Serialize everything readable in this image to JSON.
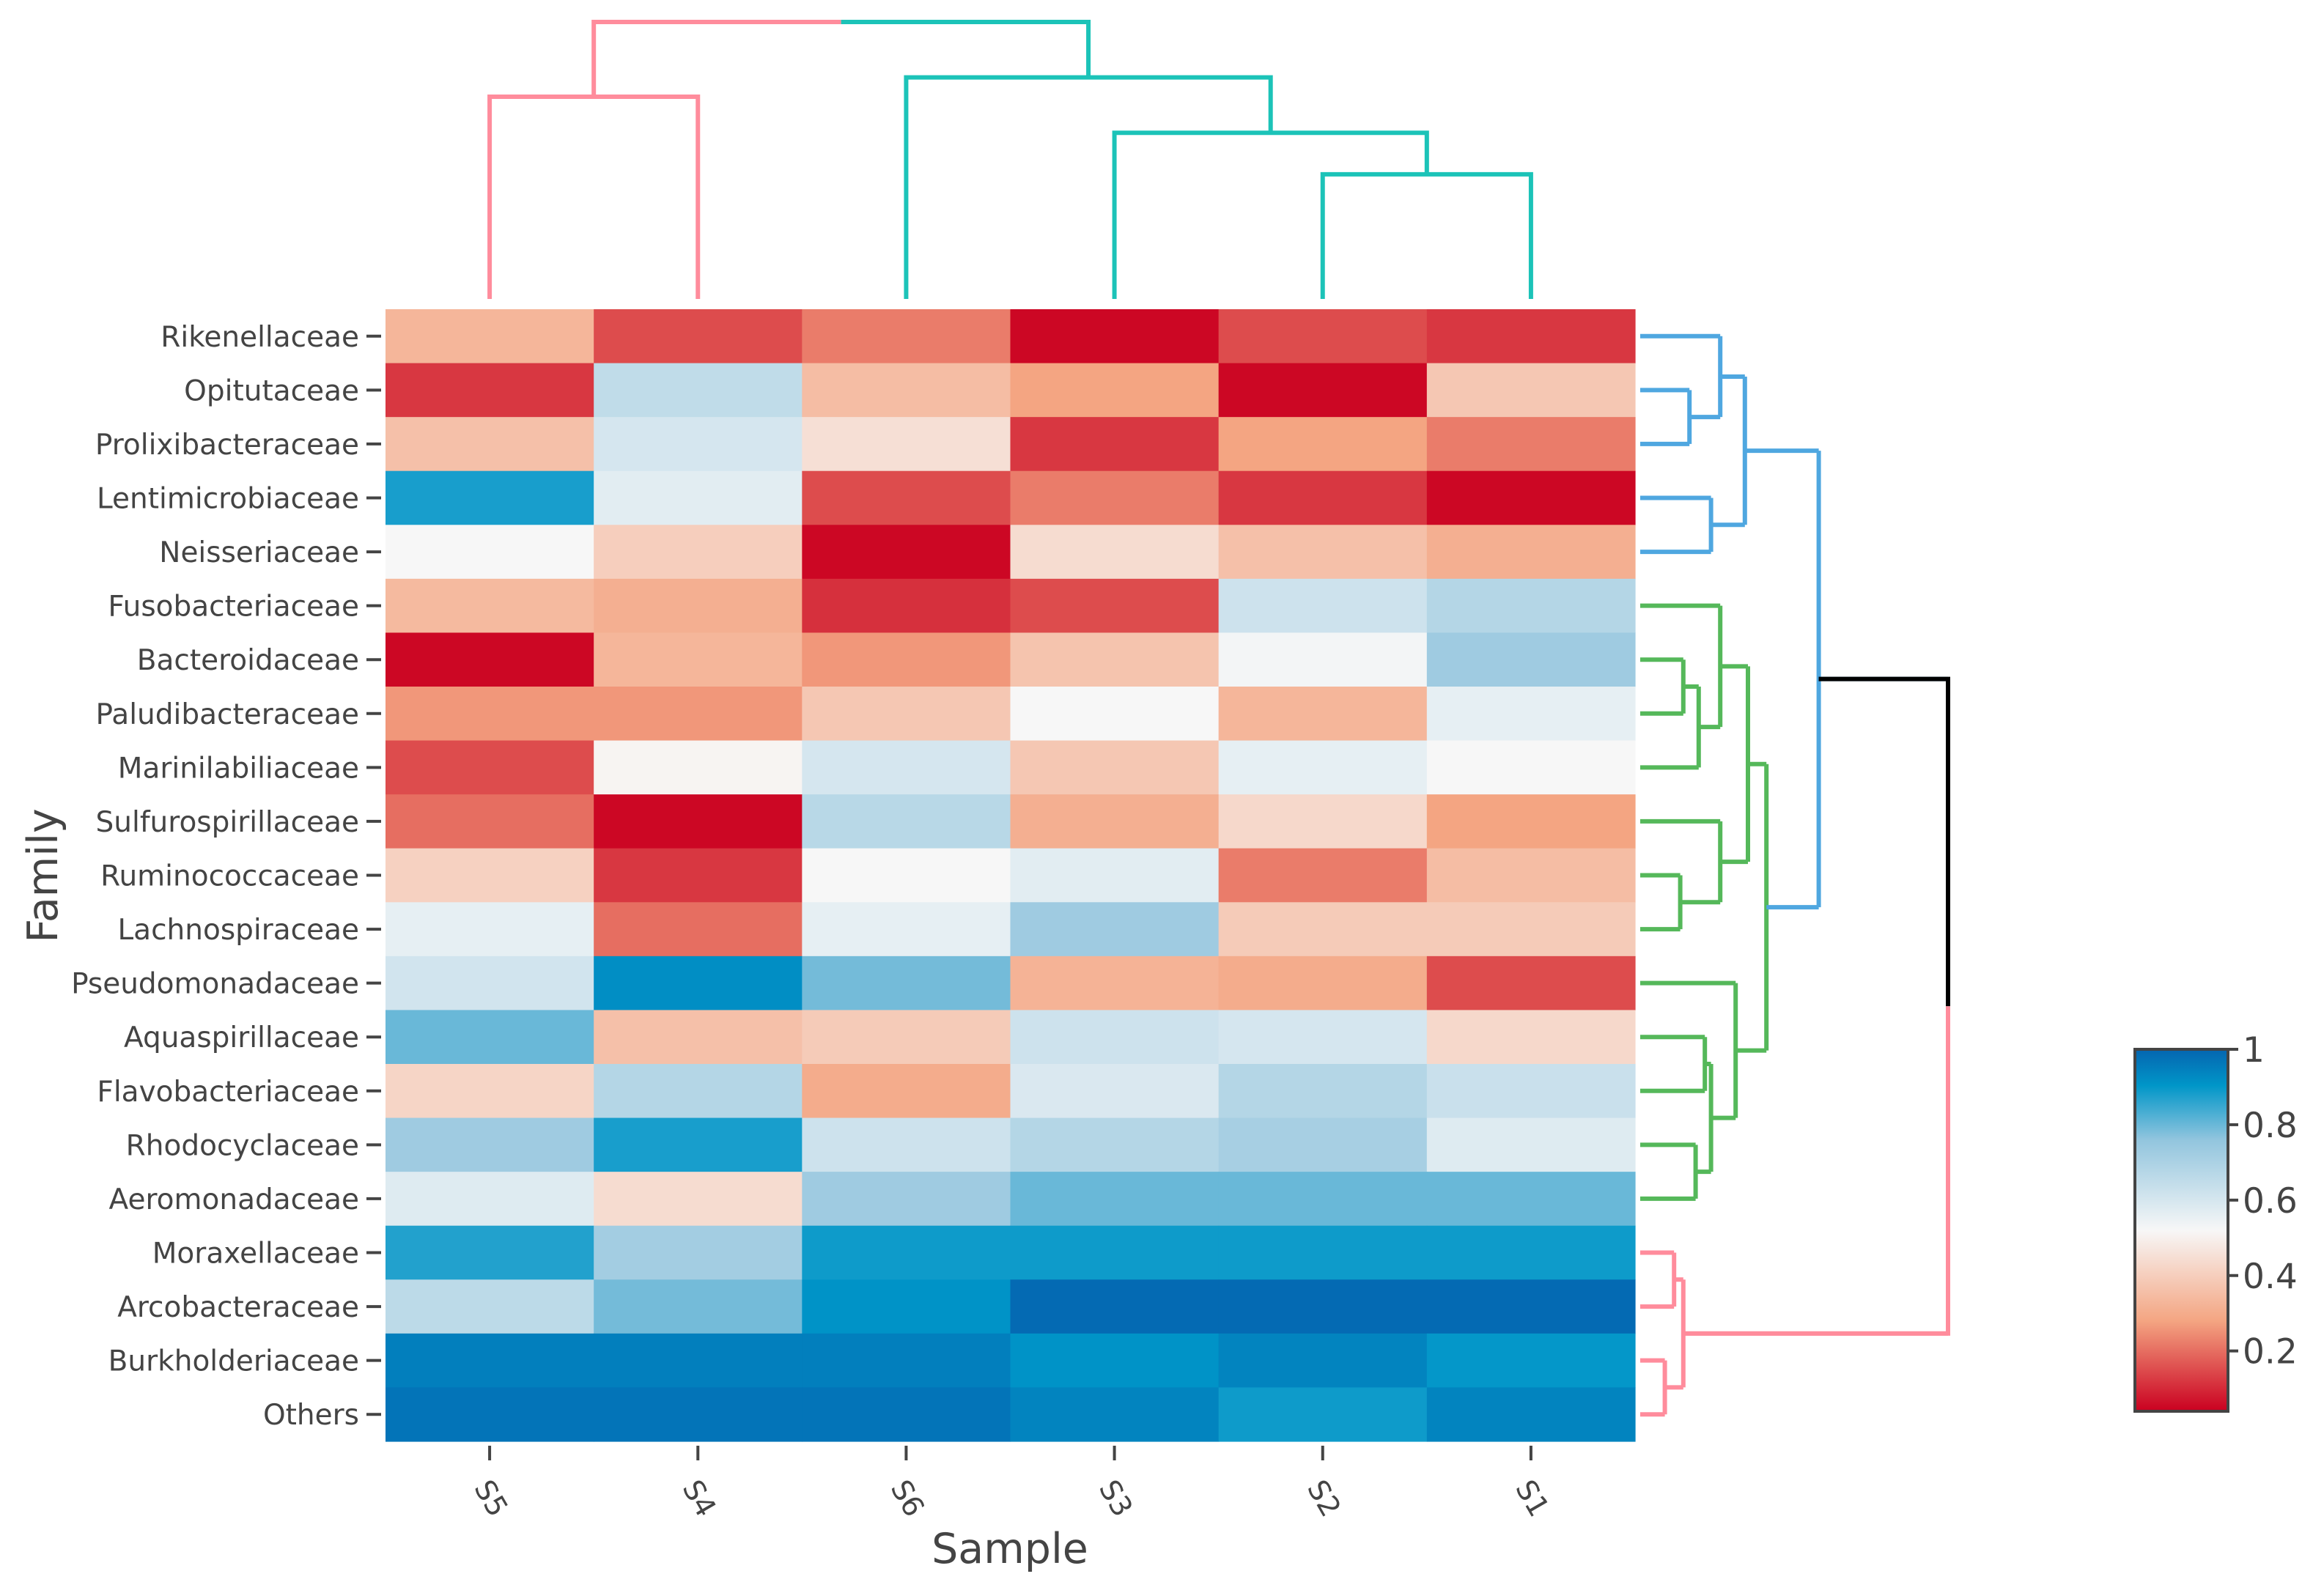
{
  "chart_data": {
    "type": "heatmap",
    "title": "",
    "xlabel": "Sample",
    "ylabel": "Family",
    "x_categories": [
      "S5",
      "S4",
      "S6",
      "S3",
      "S2",
      "S1"
    ],
    "y_categories": [
      "Rikenellaceae",
      "Opitutaceae",
      "Prolixibacteraceae",
      "Lentimicrobiaceae",
      "Neisseriaceae",
      "Fusobacteriaceae",
      "Bacteroidaceae",
      "Paludibacteraceae",
      "Marinilabiliaceae",
      "Sulfurospirillaceae",
      "Ruminococcaceae",
      "Lachnospiraceae",
      "Pseudomonadaceae",
      "Aquaspirillaceae",
      "Flavobacteriaceae",
      "Rhodocyclaceae",
      "Aeromonadaceae",
      "Moraxellaceae",
      "Arcobacteraceae",
      "Burkholderiaceae",
      "Others"
    ],
    "values": [
      [
        0.33,
        0.15,
        0.22,
        0.05,
        0.15,
        0.12
      ],
      [
        0.12,
        0.65,
        0.35,
        0.28,
        0.05,
        0.38
      ],
      [
        0.36,
        0.6,
        0.45,
        0.12,
        0.28,
        0.22
      ],
      [
        0.88,
        0.57,
        0.15,
        0.22,
        0.12,
        0.05
      ],
      [
        0.52,
        0.4,
        0.05,
        0.44,
        0.36,
        0.31
      ],
      [
        0.34,
        0.31,
        0.11,
        0.15,
        0.62,
        0.68
      ],
      [
        0.05,
        0.33,
        0.26,
        0.37,
        0.53,
        0.73
      ],
      [
        0.26,
        0.26,
        0.38,
        0.52,
        0.33,
        0.56
      ],
      [
        0.15,
        0.51,
        0.6,
        0.38,
        0.56,
        0.52
      ],
      [
        0.2,
        0.05,
        0.67,
        0.31,
        0.43,
        0.28
      ],
      [
        0.41,
        0.12,
        0.52,
        0.57,
        0.22,
        0.35
      ],
      [
        0.56,
        0.2,
        0.56,
        0.73,
        0.39,
        0.39
      ],
      [
        0.61,
        0.92,
        0.79,
        0.32,
        0.3,
        0.15
      ],
      [
        0.8,
        0.36,
        0.39,
        0.62,
        0.6,
        0.43
      ],
      [
        0.42,
        0.68,
        0.3,
        0.59,
        0.68,
        0.63
      ],
      [
        0.73,
        0.88,
        0.62,
        0.68,
        0.71,
        0.58
      ],
      [
        0.58,
        0.44,
        0.73,
        0.8,
        0.8,
        0.8
      ],
      [
        0.87,
        0.72,
        0.89,
        0.89,
        0.89,
        0.89
      ],
      [
        0.66,
        0.79,
        0.91,
        0.99,
        0.99,
        0.99
      ],
      [
        0.95,
        0.95,
        0.95,
        0.91,
        0.94,
        0.9
      ],
      [
        0.97,
        0.97,
        0.97,
        0.94,
        0.89,
        0.94
      ]
    ],
    "zlim": [
      0.04,
      1.0
    ],
    "colorscale": [
      [
        0.0,
        "#ca0020"
      ],
      [
        0.25,
        "#f4a582"
      ],
      [
        0.5,
        "#f7f7f7"
      ],
      [
        0.75,
        "#92c5de"
      ],
      [
        0.9,
        "#0096c8"
      ],
      [
        1.0,
        "#0565b0"
      ]
    ],
    "colorbar_ticks": [
      "0.2",
      "0.4",
      "0.6",
      "0.8",
      "1"
    ],
    "colorbar_tick_values": [
      0.2,
      0.4,
      0.6,
      0.8,
      1.0
    ],
    "column_dendrogram": [
      {
        "left": "S5",
        "right": "S4",
        "height": 0.73,
        "color": "#ff8c9c"
      },
      {
        "left": "S2",
        "right": "S1",
        "height": 0.45,
        "color": "#1cc3b8"
      },
      {
        "left": "S3",
        "right": "S2,S1",
        "height": 0.6,
        "color": "#1cc3b8"
      },
      {
        "left": "S6",
        "right": "S3,S2,S1",
        "height": 0.8,
        "color": "#1cc3b8"
      },
      {
        "left": "S5,S4",
        "right": "S6,S3,S2,S1",
        "height": 1.0,
        "color": "mixed"
      }
    ],
    "row_dendrogram": [
      {
        "rows": [
          "Opitutaceae",
          "Prolixibacteraceae"
        ],
        "height": 0.16,
        "color": "#4fa7e0"
      },
      {
        "rows": [
          "Rikenellaceae",
          "Opitutaceae",
          "Prolixibacteraceae"
        ],
        "height": 0.26,
        "color": "#4fa7e0"
      },
      {
        "rows": [
          "Lentimicrobiaceae",
          "Neisseriaceae"
        ],
        "height": 0.23,
        "color": "#4fa7e0"
      },
      {
        "rows": [
          "Rikenellaceae",
          "Opitutaceae",
          "Prolixibacteraceae",
          "Lentimicrobiaceae",
          "Neisseriaceae"
        ],
        "height": 0.34,
        "color": "#4fa7e0"
      },
      {
        "rows": [
          "Bacteroidaceae",
          "Paludibacteraceae"
        ],
        "height": 0.14,
        "color": "#55b85a"
      },
      {
        "rows": [
          "Bacteroidaceae",
          "Paludibacteraceae",
          "Marinilabiliaceae"
        ],
        "height": 0.19,
        "color": "#55b85a"
      },
      {
        "rows": [
          "Fusobacteriaceae",
          "Bacteroidaceae",
          "Paludibacteraceae",
          "Marinilabiliaceae"
        ],
        "height": 0.26,
        "color": "#55b85a"
      },
      {
        "rows": [
          "Ruminococcaceae",
          "Lachnospiraceae"
        ],
        "height": 0.13,
        "color": "#55b85a"
      },
      {
        "rows": [
          "Sulfurospirillaceae",
          "Ruminococcaceae",
          "Lachnospiraceae"
        ],
        "height": 0.26,
        "color": "#55b85a"
      },
      {
        "rows": [
          "Fusobacteriaceae",
          "Bacteroidaceae",
          "Paludibacteraceae",
          "Marinilabiliaceae",
          "Sulfurospirillaceae",
          "Ruminococcaceae",
          "Lachnospiraceae"
        ],
        "height": 0.35,
        "color": "#55b85a"
      },
      {
        "rows": [
          "Aquaspirillaceae",
          "Flavobacteriaceae"
        ],
        "height": 0.21,
        "color": "#55b85a"
      },
      {
        "rows": [
          "Rhodocyclaceae",
          "Aeromonadaceae"
        ],
        "height": 0.18,
        "color": "#55b85a"
      },
      {
        "rows": [
          "Aquaspirillaceae",
          "Flavobacteriaceae",
          "Rhodocyclaceae",
          "Aeromonadaceae"
        ],
        "height": 0.23,
        "color": "#55b85a"
      },
      {
        "rows": [
          "Pseudomonadaceae",
          "Aquaspirillaceae",
          "Flavobacteriaceae",
          "Rhodocyclaceae",
          "Aeromonadaceae"
        ],
        "height": 0.31,
        "color": "#55b85a"
      },
      {
        "rows": [
          "Fusobacteriaceae",
          "Bacteroidaceae",
          "Paludibacteraceae",
          "Marinilabiliaceae",
          "Sulfurospirillaceae",
          "Ruminococcaceae",
          "Lachnospiraceae",
          "Pseudomonadaceae",
          "Aquaspirillaceae",
          "Flavobacteriaceae",
          "Rhodocyclaceae",
          "Aeromonadaceae"
        ],
        "height": 0.41,
        "color": "#55b85a"
      },
      {
        "rows": [
          "Rikenellaceae",
          "Opitutaceae",
          "Prolixibacteraceae",
          "Lentimicrobiaceae",
          "Neisseriaceae",
          "Fusobacteriaceae",
          "Bacteroidaceae",
          "Paludibacteraceae",
          "Marinilabiliaceae",
          "Sulfurospirillaceae",
          "Ruminococcaceae",
          "Lachnospiraceae",
          "Pseudomonadaceae",
          "Aquaspirillaceae",
          "Flavobacteriaceae",
          "Rhodocyclaceae",
          "Aeromonadaceae"
        ],
        "height": 0.58,
        "color": "#4fa7e0"
      },
      {
        "rows": [
          "Moraxellaceae",
          "Arcobacteraceae"
        ],
        "height": 0.11,
        "color": "#ff8c9c"
      },
      {
        "rows": [
          "Burkholderiaceae",
          "Others"
        ],
        "height": 0.08,
        "color": "#ff8c9c"
      },
      {
        "rows": [
          "Moraxellaceae",
          "Arcobacteraceae",
          "Burkholderiaceae",
          "Others"
        ],
        "height": 0.14,
        "color": "#ff8c9c"
      },
      {
        "rows": [
          "all"
        ],
        "height": 1.0,
        "color": "#000000"
      }
    ]
  }
}
